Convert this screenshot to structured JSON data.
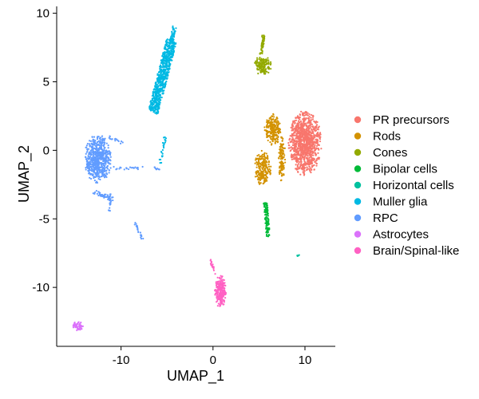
{
  "chart_data": {
    "type": "scatter",
    "title": "",
    "xlabel": "UMAP_1",
    "ylabel": "UMAP_2",
    "xlim": [
      -17,
      13.3
    ],
    "ylim": [
      -14.3,
      10.5
    ],
    "x_ticks": [
      -10,
      0,
      10
    ],
    "x_tick_labels": [
      "-10",
      "0",
      "10"
    ],
    "y_ticks": [
      -10,
      -5,
      0,
      5,
      10
    ],
    "y_tick_labels": [
      "-10",
      "-5",
      "0",
      "5",
      "10"
    ],
    "grid": false,
    "legend_position": "right",
    "series": [
      {
        "name": "PR precursors",
        "color": "#F8766D",
        "clusters": [
          {
            "shape": "ellipse",
            "center": [
              10.0,
              0.5
            ],
            "spread": [
              1.8,
              2.4
            ],
            "n": 1100
          }
        ]
      },
      {
        "name": "Rods",
        "color": "#D39200",
        "clusters": [
          {
            "shape": "ellipse",
            "center": [
              6.5,
              1.5
            ],
            "spread": [
              0.9,
              1.2
            ],
            "n": 220
          },
          {
            "shape": "ellipse",
            "center": [
              5.4,
              -1.3
            ],
            "spread": [
              0.9,
              1.3
            ],
            "n": 220
          },
          {
            "shape": "ellipse",
            "center": [
              7.5,
              -0.5
            ],
            "spread": [
              0.4,
              1.8
            ],
            "n": 120
          }
        ]
      },
      {
        "name": "Cones",
        "color": "#93AA00",
        "clusters": [
          {
            "shape": "ellipse",
            "center": [
              5.4,
              6.2
            ],
            "spread": [
              1.0,
              0.7
            ],
            "n": 170
          },
          {
            "shape": "segment",
            "from": [
              5.2,
              7.0
            ],
            "to": [
              5.5,
              8.4
            ],
            "width": 0.3,
            "n": 45
          }
        ]
      },
      {
        "name": "Bipolar cells",
        "color": "#00BA38",
        "clusters": [
          {
            "shape": "segment",
            "from": [
              5.7,
              -3.8
            ],
            "to": [
              6.0,
              -6.3
            ],
            "width": 0.4,
            "n": 110
          }
        ]
      },
      {
        "name": "Horizontal cells",
        "color": "#00C19F",
        "clusters": [
          {
            "shape": "ellipse",
            "center": [
              9.3,
              -7.7
            ],
            "spread": [
              0.15,
              0.15
            ],
            "n": 4
          }
        ]
      },
      {
        "name": "Muller glia",
        "color": "#00B9E3",
        "clusters": [
          {
            "shape": "segment",
            "from": [
              -6.5,
              2.8
            ],
            "to": [
              -4.5,
              8.0
            ],
            "width": 1.1,
            "n": 700
          },
          {
            "shape": "segment",
            "from": [
              -4.5,
              8.0
            ],
            "to": [
              -4.2,
              9.0
            ],
            "width": 0.4,
            "n": 40
          },
          {
            "shape": "segment",
            "from": [
              -5.2,
              1.0
            ],
            "to": [
              -5.8,
              -1.0
            ],
            "width": 0.3,
            "n": 25
          }
        ]
      },
      {
        "name": "RPC",
        "color": "#619CFF",
        "clusters": [
          {
            "shape": "ellipse",
            "center": [
              -12.5,
              -0.6
            ],
            "spread": [
              1.5,
              1.8
            ],
            "n": 620
          },
          {
            "shape": "segment",
            "from": [
              -13.0,
              -3.0
            ],
            "to": [
              -10.8,
              -3.6
            ],
            "width": 0.3,
            "n": 40
          },
          {
            "shape": "segment",
            "from": [
              -10.8,
              -1.3
            ],
            "to": [
              -5.8,
              -1.3
            ],
            "width": 0.2,
            "n": 30
          },
          {
            "shape": "segment",
            "from": [
              -11.4,
              1.0
            ],
            "to": [
              -9.8,
              0.5
            ],
            "width": 0.2,
            "n": 15
          },
          {
            "shape": "segment",
            "from": [
              -11.1,
              -3.2
            ],
            "to": [
              -11.3,
              -4.6
            ],
            "width": 0.2,
            "n": 18
          },
          {
            "shape": "segment",
            "from": [
              -8.5,
              -5.3
            ],
            "to": [
              -7.6,
              -6.6
            ],
            "width": 0.2,
            "n": 22
          }
        ]
      },
      {
        "name": "Astrocytes",
        "color": "#DB72FB",
        "clusters": [
          {
            "shape": "ellipse",
            "center": [
              -14.7,
              -12.8
            ],
            "spread": [
              0.6,
              0.35
            ],
            "n": 55
          }
        ]
      },
      {
        "name": "Brain/Spinal-like",
        "color": "#FF61C3",
        "clusters": [
          {
            "shape": "ellipse",
            "center": [
              0.8,
              -10.3
            ],
            "spread": [
              0.6,
              1.2
            ],
            "n": 250
          },
          {
            "shape": "segment",
            "from": [
              -0.3,
              -8.0
            ],
            "to": [
              0.3,
              -9.0
            ],
            "width": 0.2,
            "n": 20
          }
        ]
      }
    ]
  }
}
